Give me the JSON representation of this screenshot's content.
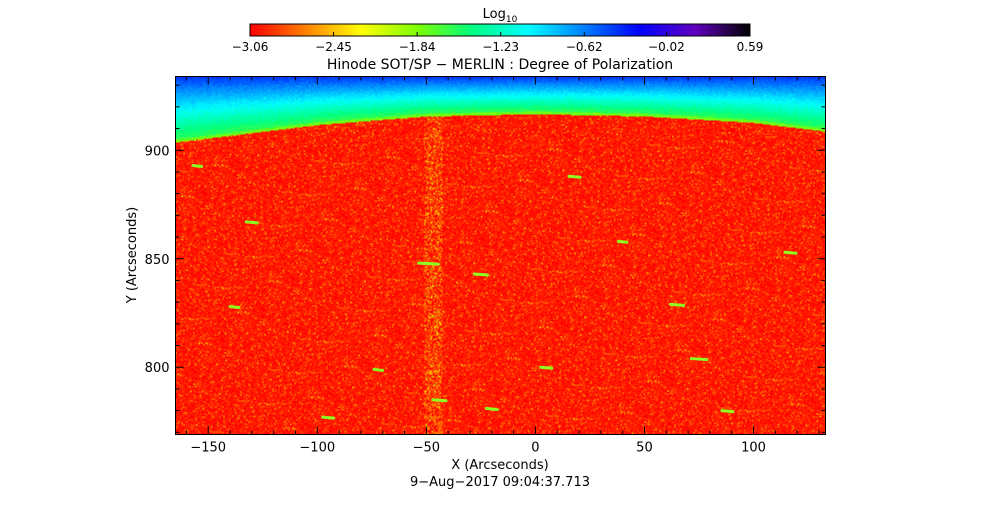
{
  "colorbar": {
    "label": "Log",
    "label_subscript": "10",
    "ticks": [
      -3.06,
      -2.45,
      -1.84,
      -1.23,
      -0.62,
      -0.02,
      0.59
    ],
    "tick_labels": [
      "−3.06",
      "−2.45",
      "−1.84",
      "−1.23",
      "−0.62",
      "−0.02",
      "0.59"
    ],
    "range": [
      -3.06,
      0.59
    ],
    "colormap": [
      "#ff0000",
      "#ff8000",
      "#ffff00",
      "#80ff00",
      "#00ff80",
      "#00ffff",
      "#0080ff",
      "#0000ff",
      "#6000c0",
      "#000000"
    ]
  },
  "chart_data": {
    "type": "heatmap",
    "title": "Hinode SOT/SP − MERLIN : Degree of Polarization",
    "xlabel": "X (Arcseconds)",
    "ylabel": "Y (Arcseconds)",
    "xlim": [
      -165,
      133
    ],
    "ylim": [
      769,
      934
    ],
    "x_ticks": [
      -150,
      -100,
      -50,
      0,
      50,
      100
    ],
    "x_tick_labels": [
      "−150",
      "−100",
      "−50",
      "0",
      "50",
      "100"
    ],
    "y_ticks": [
      800,
      850,
      900
    ],
    "y_tick_labels": [
      "800",
      "850",
      "900"
    ],
    "limb": {
      "x": [
        -165,
        -100,
        -50,
        0,
        50,
        100,
        133
      ],
      "y": [
        905,
        913,
        917,
        918,
        917,
        914,
        910
      ]
    },
    "disk_log10_value": -3.0,
    "offdisk_log10_range": [
      -1.6,
      -0.4
    ],
    "bright_features": [
      {
        "x": -49,
        "y": 848,
        "len": 9
      },
      {
        "x": -25,
        "y": 843,
        "len": 6
      },
      {
        "x": -138,
        "y": 828,
        "len": 4
      },
      {
        "x": -44,
        "y": 785,
        "len": 6
      },
      {
        "x": -95,
        "y": 777,
        "len": 5
      },
      {
        "x": 65,
        "y": 829,
        "len": 6
      },
      {
        "x": 75,
        "y": 804,
        "len": 7
      },
      {
        "x": 117,
        "y": 853,
        "len": 5
      },
      {
        "x": 5,
        "y": 800,
        "len": 5
      },
      {
        "x": 88,
        "y": 780,
        "len": 5
      },
      {
        "x": -20,
        "y": 781,
        "len": 5
      },
      {
        "x": -155,
        "y": 893,
        "len": 4
      },
      {
        "x": 18,
        "y": 888,
        "len": 5
      },
      {
        "x": -130,
        "y": 867,
        "len": 5
      },
      {
        "x": -72,
        "y": 799,
        "len": 4
      },
      {
        "x": 40,
        "y": 858,
        "len": 4
      }
    ]
  },
  "timestamp": "9−Aug−2017 09:04:37.713"
}
